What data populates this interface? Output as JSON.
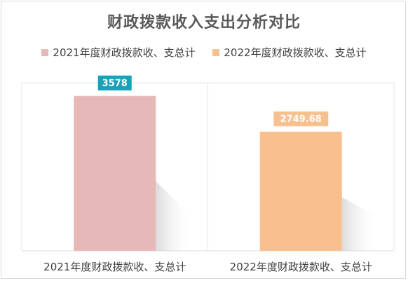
{
  "chart_data": {
    "type": "bar",
    "title": "财政拨款收入支出分析对比",
    "categories": [
      "2021年度财政拨款收、支总计",
      "2022年度财政拨款收、支总计"
    ],
    "series": [
      {
        "name": "2021年度财政拨款收、支总计",
        "values": [
          3578,
          null
        ],
        "color": "#e6b8b7"
      },
      {
        "name": "2022年度财政拨款收、支总计",
        "values": [
          null,
          2749.68
        ],
        "color": "#f9c08f"
      }
    ],
    "data_labels": [
      "3578",
      "2749.68"
    ],
    "label_box_colors": [
      "#17a2b8",
      "#f9c08f"
    ],
    "ylim": [
      0,
      3880
    ],
    "grid": false,
    "legend_position": "top"
  }
}
